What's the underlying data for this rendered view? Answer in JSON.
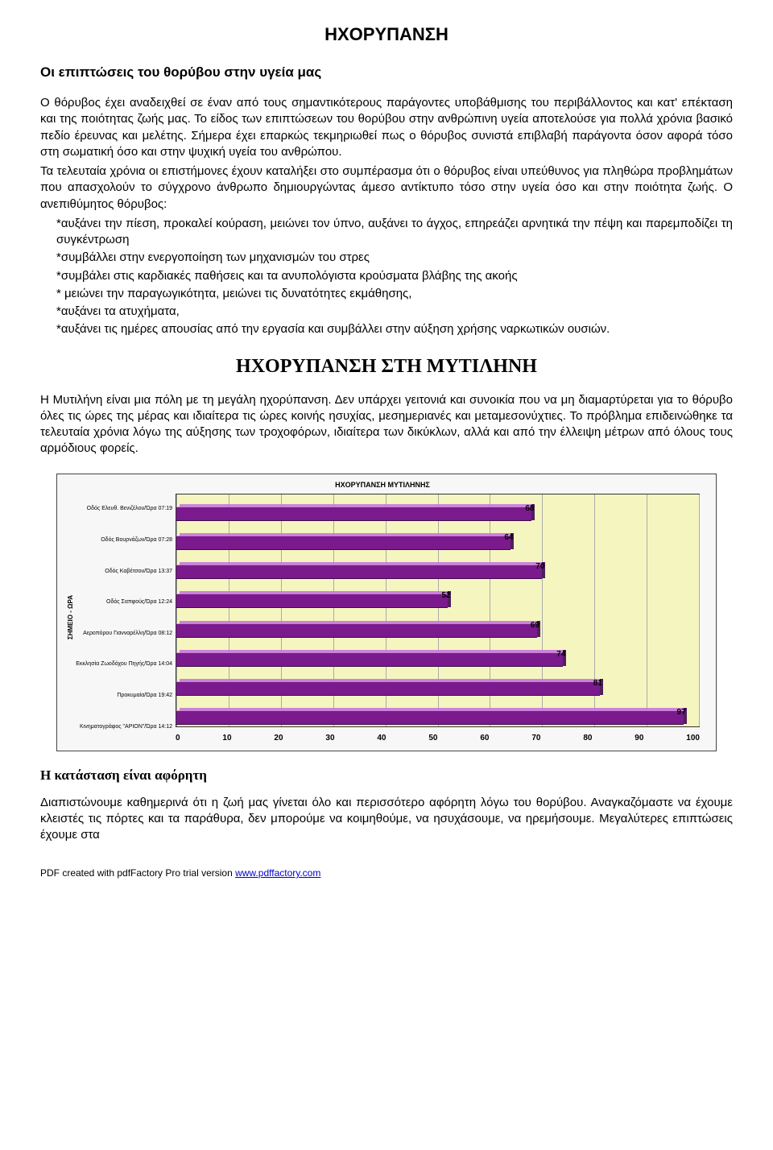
{
  "doc": {
    "title": "ΗΧΟΡΥΠΑΝΣΗ",
    "subtitle": "Οι επιπτώσεις του θορύβου στην υγεία μας",
    "para1": "Ο θόρυβος έχει αναδειχθεί σε έναν από τους σημαντικότερους παράγοντες υποβάθμισης του περιβάλλοντος και κατ' επέκταση και της ποιότητας ζωής μας. Το είδος των επιπτώσεων του θορύβου στην ανθρώπινη υγεία αποτελούσε για πολλά χρόνια βασικό πεδίο έρευνας και μελέτης. Σήμερα έχει επαρκώς τεκμηριωθεί πως ο θόρυβος συνιστά επιβλαβή παράγοντα όσον αφορά τόσο στη σωματική όσο και στην ψυχική υγεία του ανθρώπου.",
    "para2": "Τα τελευταία χρόνια οι επιστήμονες έχουν καταλήξει στο συμπέρασμα ότι ο θόρυβος είναι υπεύθυνος για πληθώρα προβλημάτων που απασχολούν το σύγχρονο άνθρωπο δημιουργώντας άμεσο αντίκτυπο τόσο στην υγεία όσο και στην ποιότητα ζωής. Ο ανεπιθύμητος θόρυβος:",
    "b1": "*αυξάνει την πίεση, προκαλεί κούραση, μειώνει τον ύπνο, αυξάνει το άγχος, επηρεάζει αρνητικά την πέψη και παρεμποδίζει τη συγκέντρωση",
    "b2": "*συμβάλλει στην ενεργοποίηση των μηχανισμών του στρες",
    "b3": "*συμβάλει στις καρδιακές παθήσεις και τα ανυπολόγιστα κρούσματα βλάβης της ακοής",
    "b4": "* μειώνει την παραγωγικότητα, μειώνει τις δυνατότητες εκμάθησης,",
    "b5": "*αυξάνει τα ατυχήματα,",
    "b6": "*αυξάνει τις ημέρες απουσίας από την εργασία και συμβάλλει στην αύξηση χρήσης ναρκωτικών ουσιών.",
    "mytilini_title": "ΗΧΟΡΥΠΑΝΣΗ ΣΤΗ ΜΥΤΙΛΗΝΗ",
    "mytilini_para": "Η Μυτιλήνη είναι μια πόλη με τη μεγάλη ηχορύπανση. Δεν υπάρχει γειτονιά και συνοικία που να μη διαμαρτύρεται για το θόρυβο όλες τις ώρες της μέρας και ιδιαίτερα τις ώρες κοινής ησυχίας, μεσημεριανές και μεταμεσονύχτιες. Το πρόβλημα επιδεινώθηκε τα τελευταία χρόνια λόγω της αύξησης των τροχοφόρων, ιδιαίτερα των δικύκλων, αλλά και από την έλλειψη μέτρων από όλους τους αρμόδιους φορείς.",
    "sub_heading": "Η κατάσταση είναι αφόρητη",
    "closing_para": "Διαπιστώνουμε καθημερινά ότι η ζωή μας γίνεται όλο και περισσότερο αφόρητη λόγω του θορύβου. Αναγκαζόμαστε να έχουμε κλειστές τις πόρτες και τα παράθυρα, δεν μπορούμε να κοιμηθούμε, να ησυχάσουμε, να ηρεμήσουμε. Μεγαλύτερες επιπτώσεις έχουμε στα",
    "footer_prefix": "PDF created with pdfFactory Pro trial version ",
    "footer_url": "www.pdffactory.com"
  },
  "chart": {
    "title": "ΗΧΟΡΥΠΑΝΣΗ ΜΥΤΙΛΗΝΗΣ",
    "y_axis": "ΣΗΜΕΙΟ - ΩΡΑ",
    "x_min": 0,
    "x_max": 100,
    "x_step": 10,
    "plot_bg": "#f5f5c0",
    "grid_color": "#aaaaaa",
    "x_ticks": [
      "0",
      "10",
      "20",
      "30",
      "40",
      "50",
      "60",
      "70",
      "80",
      "90",
      "100"
    ],
    "bars": [
      {
        "label": "Οδός Ελευθ. Βενιζέλου/Ώρα 07:19",
        "value": 68,
        "color": "#7a1a8c"
      },
      {
        "label": "Οδός Βουρνάζων/Ώρα 07:28",
        "value": 64,
        "color": "#7a1a8c"
      },
      {
        "label": "Οδός Καβέτσου/Ώρα 13:37",
        "value": 70,
        "color": "#7a1a8c"
      },
      {
        "label": "Οδός Σαπφούς/Ώρα 12:24",
        "value": 52,
        "color": "#7a1a8c"
      },
      {
        "label": "Αεροπόρου Γιανναρέλλη/Ώρα 08:12",
        "value": 69,
        "color": "#7a1a8c"
      },
      {
        "label": "Εκκλησία Ζωοδόχου Πηγής/Ώρα 14:04",
        "value": 74,
        "color": "#7a1a8c"
      },
      {
        "label": "Προκυμαία/Ώρα 19:42",
        "value": 81,
        "color": "#7a1a8c"
      },
      {
        "label": "Κινηματογράφος \"ΑΡΙΟΝ\"/Ώρα 14:12",
        "value": 97,
        "color": "#7a1a8c"
      }
    ]
  }
}
